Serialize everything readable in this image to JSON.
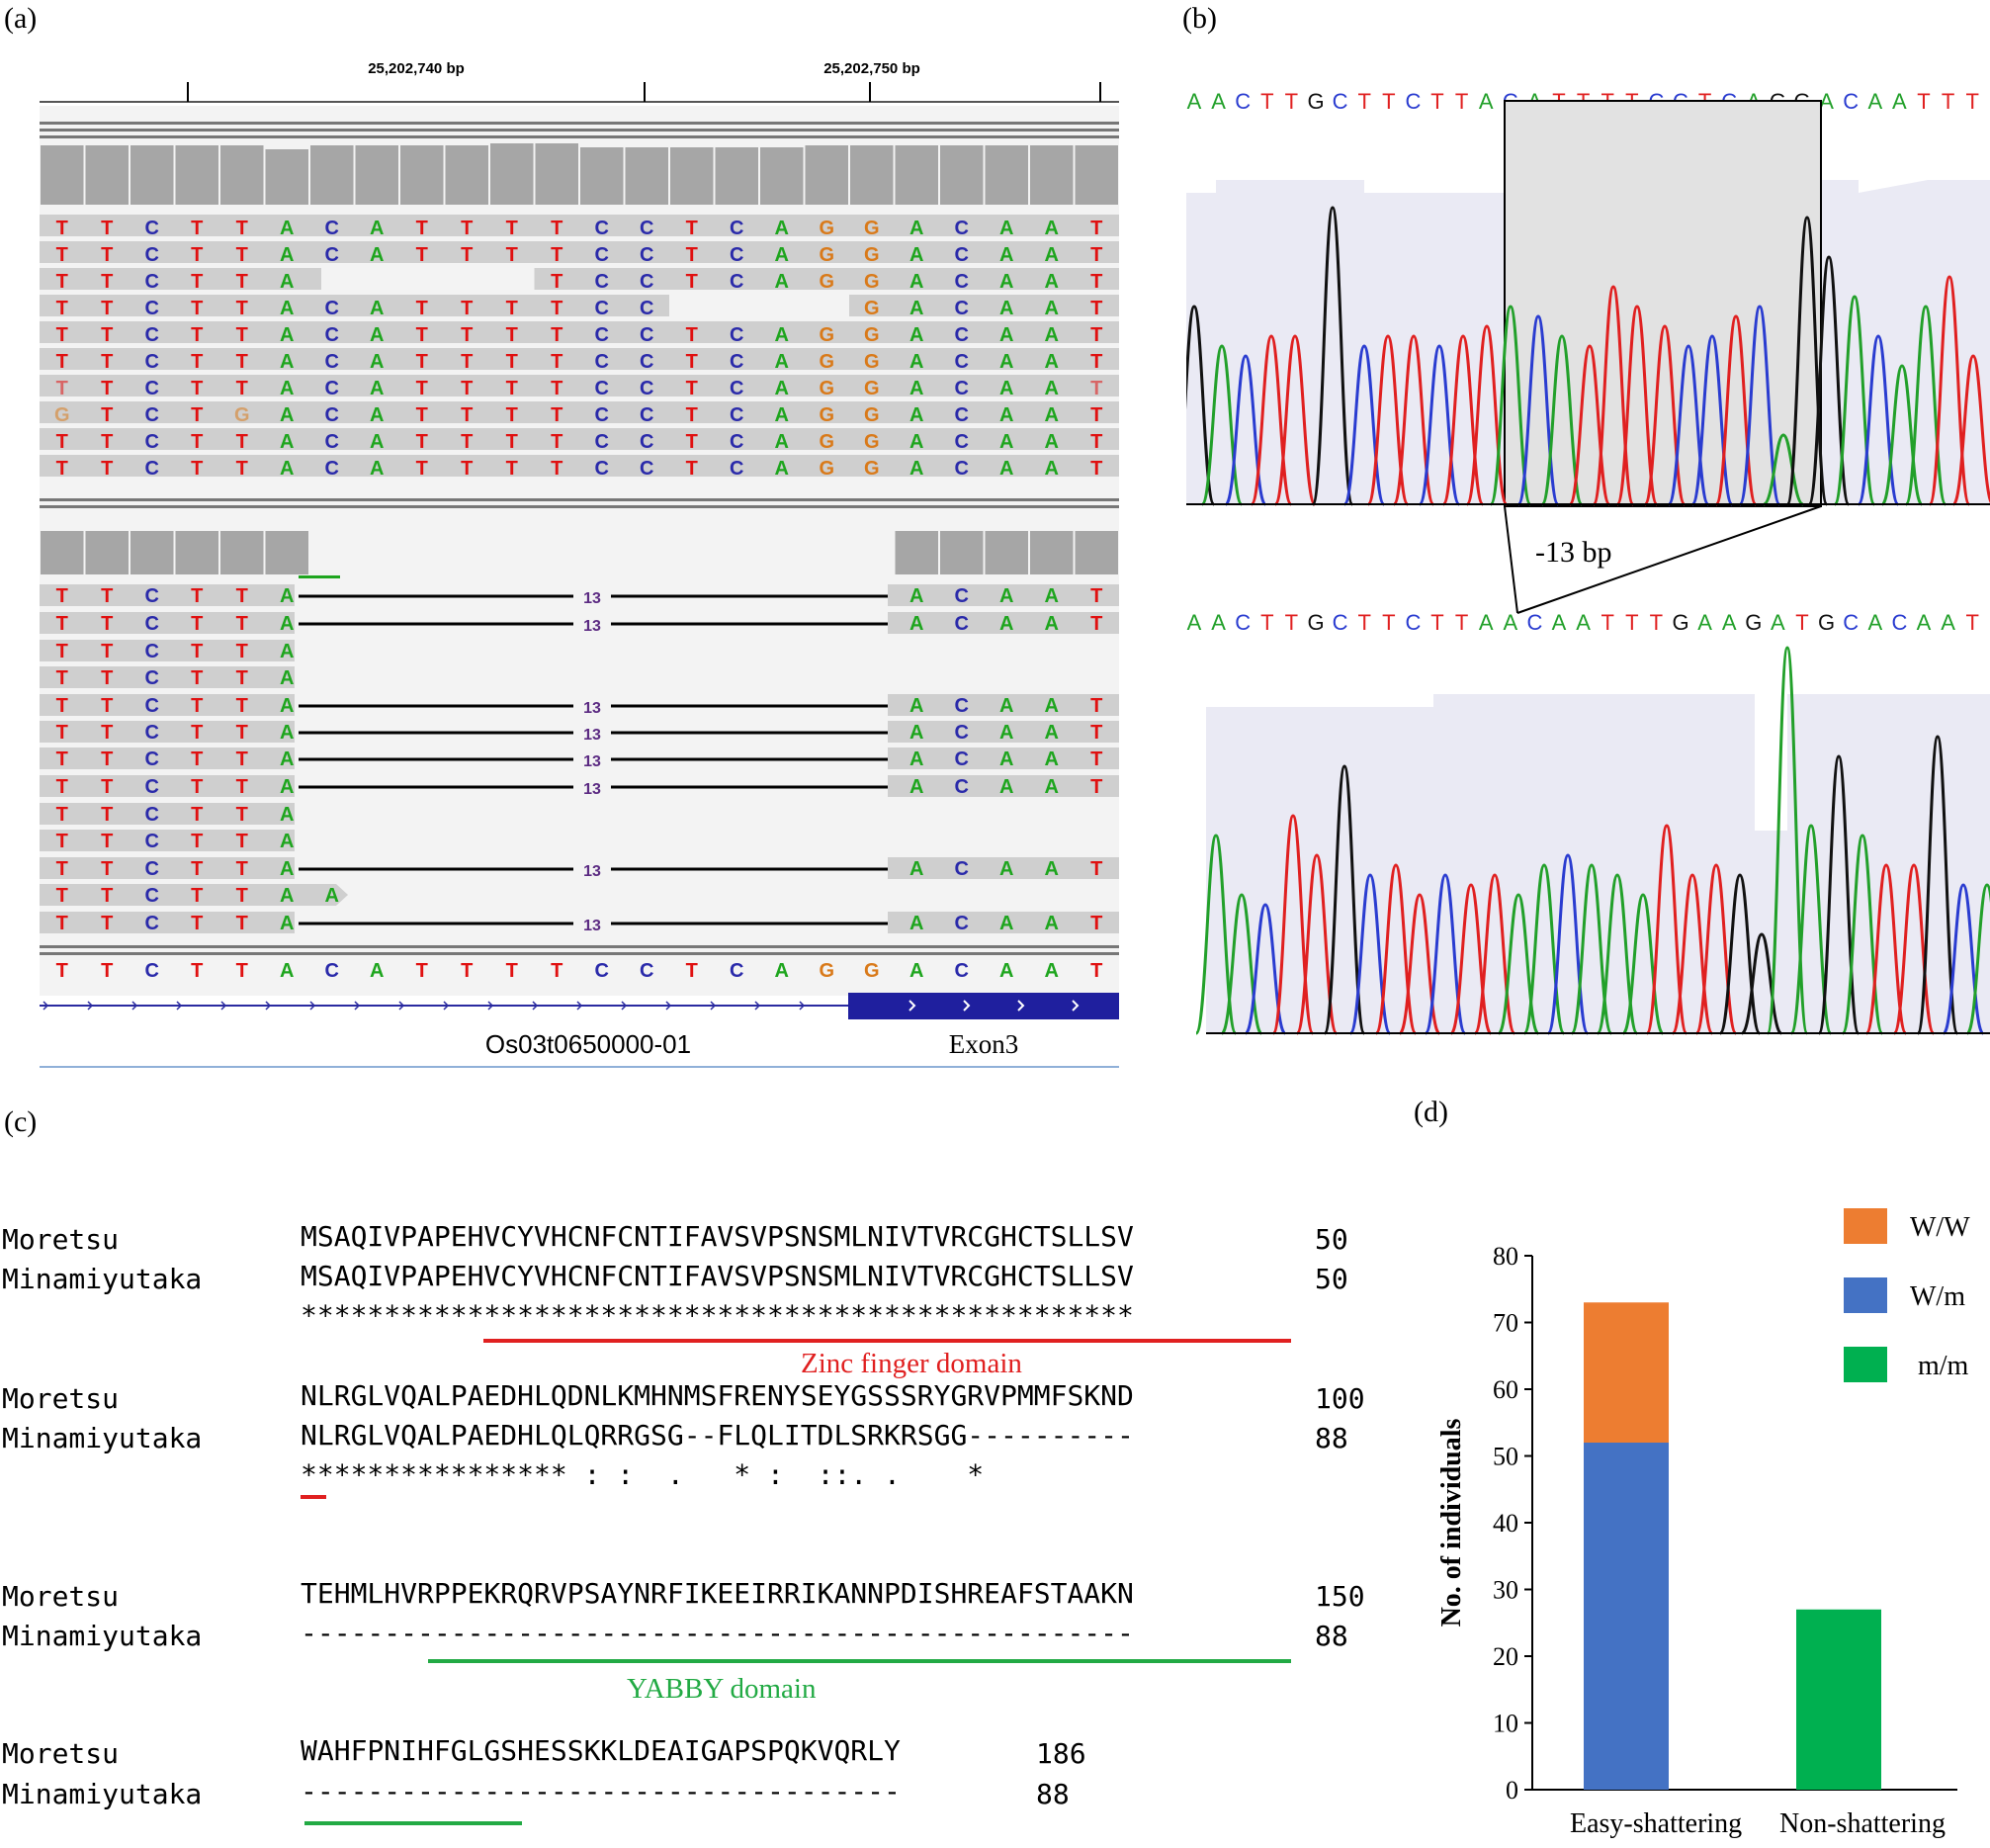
{
  "panel_labels": {
    "a": "(a)",
    "b": "(b)",
    "c": "(c)",
    "d": "(d)"
  },
  "panel_a": {
    "ruler": {
      "left_coord": "25,202,740 bp",
      "right_coord": "25,202,750 bp"
    },
    "reference_bases": [
      "T",
      "T",
      "C",
      "T",
      "T",
      "A",
      "C",
      "A",
      "T",
      "T",
      "T",
      "T",
      "C",
      "C",
      "T",
      "C",
      "A",
      "G",
      "G",
      "A",
      "C",
      "A",
      "A",
      "T"
    ],
    "deletion_label": "13",
    "transcript_name": "Os03t0650000-01",
    "exon_label": "Exon3",
    "base_colors": {
      "A": "#1ea51e",
      "C": "#2a2aaa",
      "G": "#d97a1a",
      "T": "#e01010"
    }
  },
  "panel_b": {
    "top_sequence": "AACTTGCTTCTTACATTTTCCTCAGGACAATTT",
    "bottom_sequence": "AACTTGCTTCTTAACAATTTGAAGATGCACAAT",
    "deletion_label": "-13 bp"
  },
  "panel_c": {
    "blocks": [
      {
        "seq1_name": "Moretsu",
        "seq1": "MSAQIVPAPEHVCYVHCNFCNTIFAVSVPSNSMLNIVTVRCGHCTSLLSV",
        "seq1_end": "50",
        "seq2_name": "Minamiyutaka",
        "seq2": "MSAQIVPAPEHVCYVHCNFCNTIFAVSVPSNSMLNIVTVRCGHCTSLLSV",
        "seq2_end": "50",
        "conservation": "**************************************************"
      },
      {
        "seq1_name": "Moretsu",
        "seq1": "NLRGLVQALPAEDHLQDNLKMHNMSFRENYSEYGSSSRYGRVPMMFSKND",
        "seq1_end": "100",
        "seq2_name": "Minamiyutaka",
        "seq2": "NLRGLVQALPAEDHLQLQRRGSG--FLQLITDLSRKRSGG----------",
        "seq2_end": "88",
        "conservation": "**************** : :  .   * :  ::. .    *"
      },
      {
        "seq1_name": "Moretsu",
        "seq1": "TEHMLHVRPPEKRQRVPSAYNRFIKEEIRRIKANNPDISHREAFSTAAKN",
        "seq1_end": "150",
        "seq2_name": "Minamiyutaka",
        "seq2": "--------------------------------------------------",
        "seq2_end": "88",
        "conservation": ""
      },
      {
        "seq1_name": "Moretsu",
        "seq1": "WAHFPNIHFGLGSHESSKKLDEAIGAPSPQKVQRLY",
        "seq1_end": "186",
        "seq2_name": "Minamiyutaka",
        "seq2": "------------------------------------",
        "seq2_end": "88",
        "conservation": ""
      }
    ],
    "zinc_finger_label": "Zinc finger domain",
    "yabby_label": "YABBY domain",
    "zinc_color": "#e02020",
    "yabby_color": "#22aa44"
  },
  "chart_data": {
    "type": "bar",
    "stacked": true,
    "categories": [
      "Easy-shattering",
      "Non-shattering"
    ],
    "series": [
      {
        "name": "W/m",
        "color": "#4472c4",
        "values": [
          52,
          0
        ]
      },
      {
        "name": "m/m",
        "color": "#00b050",
        "values": [
          0,
          27
        ]
      },
      {
        "name": "W/W",
        "color": "#ed7d31",
        "values": [
          21,
          0
        ]
      }
    ],
    "legend": [
      "W/W",
      "W/m",
      "m/m"
    ],
    "legend_colors": {
      "W/W": "#ed7d31",
      "W/m": "#4472c4",
      "m/m": "#00b050"
    },
    "ylabel": "No. of individuals",
    "ylim": [
      0,
      80
    ],
    "yticks": [
      "0",
      "10",
      "20",
      "30",
      "40",
      "50",
      "60",
      "70",
      "80"
    ]
  }
}
